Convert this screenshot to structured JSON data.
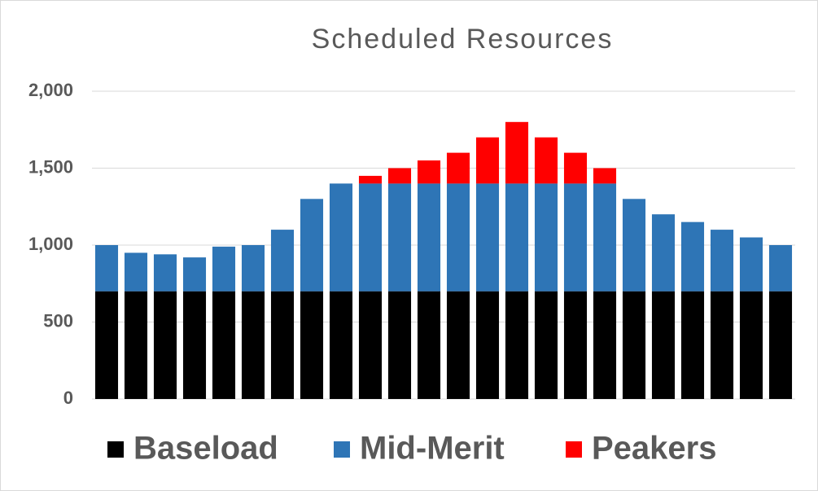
{
  "chart_data": {
    "type": "stacked_bar",
    "title": "Scheduled Resources",
    "categories": [
      null,
      null,
      null,
      null,
      null,
      null,
      null,
      null,
      null,
      null,
      null,
      null,
      null,
      null,
      null,
      null,
      null,
      null,
      null,
      null,
      null,
      null,
      null,
      null
    ],
    "series": [
      {
        "name": "Baseload",
        "color": "#000000",
        "values": [
          700,
          700,
          700,
          700,
          700,
          700,
          700,
          700,
          700,
          700,
          700,
          700,
          700,
          700,
          700,
          700,
          700,
          700,
          700,
          700,
          700,
          700,
          700,
          700
        ]
      },
      {
        "name": "Mid-Merit",
        "color": "#2e75b6",
        "values": [
          300,
          250,
          240,
          220,
          290,
          300,
          400,
          600,
          700,
          700,
          700,
          700,
          700,
          700,
          700,
          700,
          700,
          700,
          600,
          500,
          450,
          400,
          350,
          300
        ]
      },
      {
        "name": "Peakers",
        "color": "#ff0000",
        "values": [
          0,
          0,
          0,
          0,
          0,
          0,
          0,
          0,
          0,
          50,
          100,
          150,
          200,
          300,
          400,
          300,
          200,
          100,
          0,
          0,
          0,
          0,
          0,
          0
        ]
      }
    ],
    "ylim": [
      0,
      2000
    ],
    "yticks": [
      0,
      500,
      {
        "value": 1000,
        "label": "1,000"
      },
      {
        "value": 1500,
        "label": "1,500"
      },
      {
        "value": 2000,
        "label": "2,000"
      }
    ],
    "grid": true,
    "legend": "bottom"
  }
}
